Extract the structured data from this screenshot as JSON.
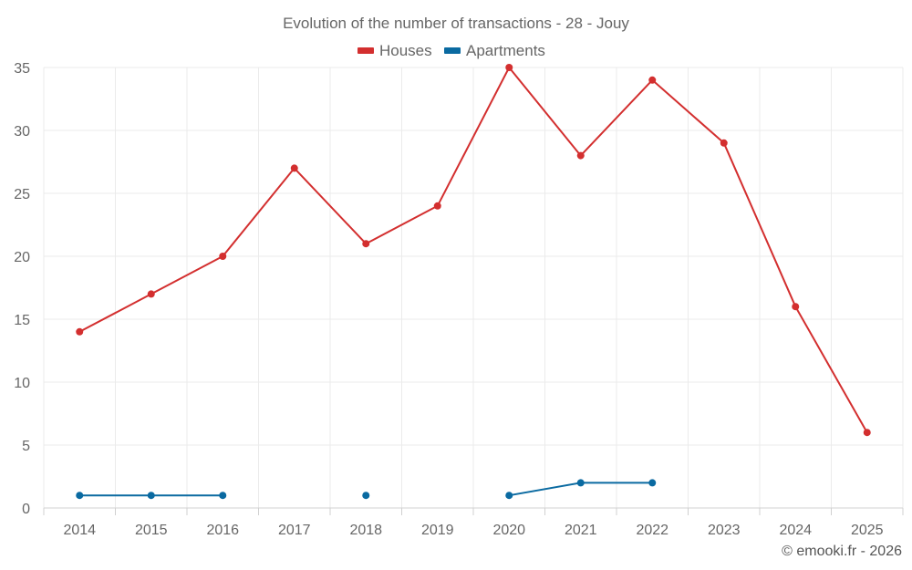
{
  "chart_data": {
    "type": "line",
    "title": "Evolution of the number of transactions - 28 - Jouy",
    "categories": [
      "2014",
      "2015",
      "2016",
      "2017",
      "2018",
      "2019",
      "2020",
      "2021",
      "2022",
      "2023",
      "2024",
      "2025"
    ],
    "series": [
      {
        "name": "Houses",
        "color": "#d32f2f",
        "values": [
          14,
          17,
          20,
          27,
          21,
          24,
          35,
          28,
          34,
          29,
          16,
          6
        ]
      },
      {
        "name": "Apartments",
        "color": "#0a6aa1",
        "values": [
          1,
          1,
          1,
          null,
          1,
          null,
          1,
          2,
          2,
          null,
          null,
          null
        ]
      }
    ],
    "ylim": [
      0,
      35
    ],
    "yticks": [
      0,
      5,
      10,
      15,
      20,
      25,
      30,
      35
    ],
    "xlabel": "",
    "ylabel": "",
    "grid": true,
    "legend": "top-center"
  },
  "credit": "© emooki.fr - 2026"
}
